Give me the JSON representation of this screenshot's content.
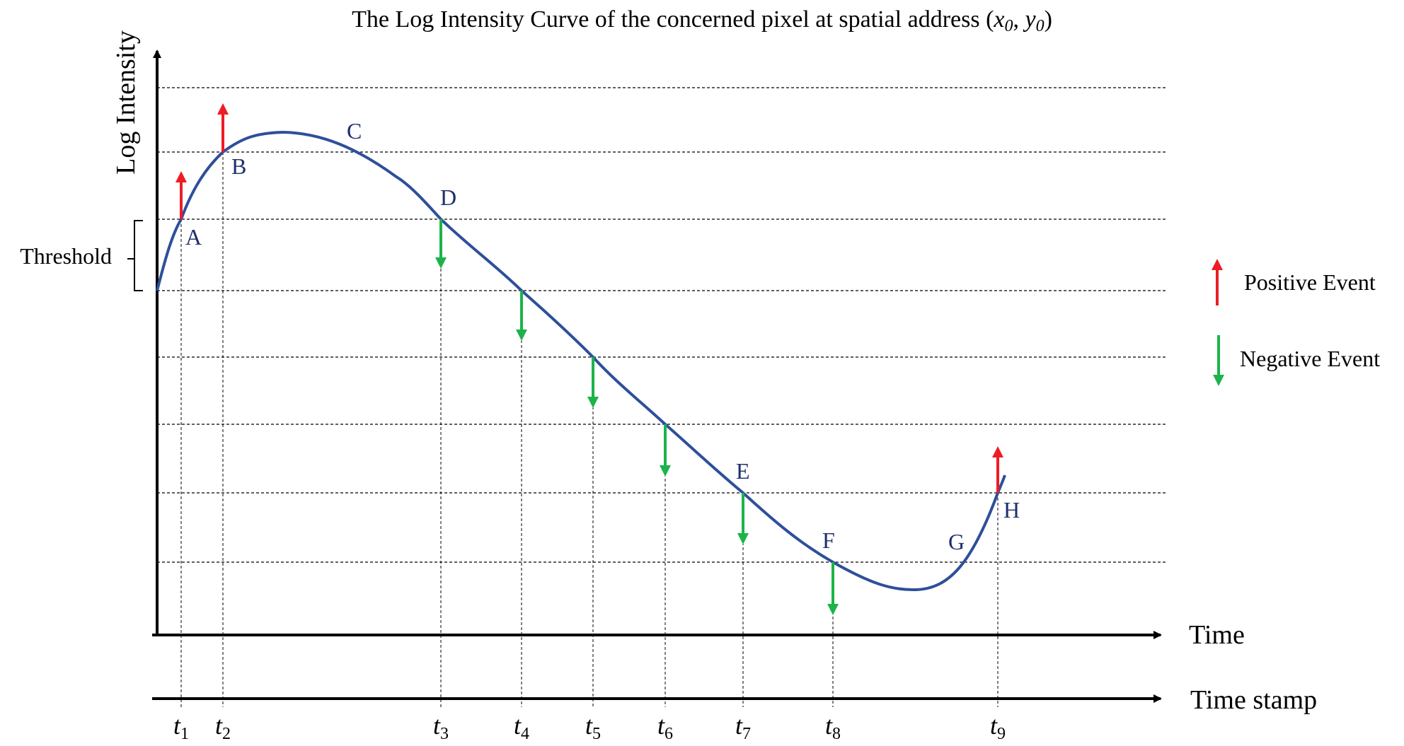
{
  "title": {
    "prefix": "The Log Intensity Curve of the concerned pixel at spatial address ",
    "open_paren": "(",
    "x_var": "x",
    "x_sub": "0",
    "comma": ", ",
    "y_var": "y",
    "y_sub": "0",
    "close_paren": ")"
  },
  "axes": {
    "y_label": "Log Intensity",
    "x_label": "Time",
    "timestamp_label": "Time stamp"
  },
  "threshold_label": "Threshold",
  "points": [
    "A",
    "B",
    "C",
    "D",
    "E",
    "F",
    "G",
    "H"
  ],
  "timestamps": [
    {
      "var": "t",
      "sub": "1"
    },
    {
      "var": "t",
      "sub": "2"
    },
    {
      "var": "t",
      "sub": "3"
    },
    {
      "var": "t",
      "sub": "4"
    },
    {
      "var": "t",
      "sub": "5"
    },
    {
      "var": "t",
      "sub": "6"
    },
    {
      "var": "t",
      "sub": "7"
    },
    {
      "var": "t",
      "sub": "8"
    },
    {
      "var": "t",
      "sub": "9"
    }
  ],
  "events": [
    "positive",
    "positive",
    "negative",
    "negative",
    "negative",
    "negative",
    "negative",
    "negative",
    "positive"
  ],
  "legend": {
    "positive_label": "Positive Event",
    "negative_label": "Negative Event"
  },
  "colors": {
    "curve": "#2e4f9a",
    "positive": "#ee1c24",
    "negative": "#1db34a",
    "axis": "#000000",
    "point_label": "#1f2f6e"
  }
}
